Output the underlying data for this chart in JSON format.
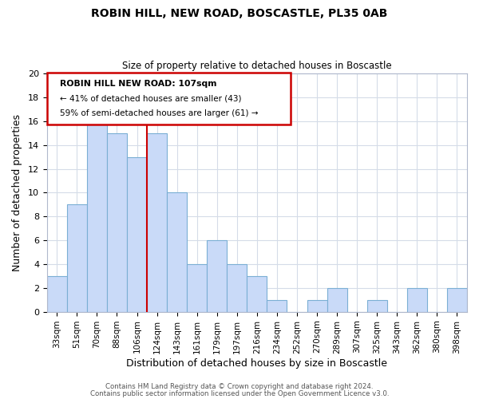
{
  "title": "ROBIN HILL, NEW ROAD, BOSCASTLE, PL35 0AB",
  "subtitle": "Size of property relative to detached houses in Boscastle",
  "xlabel": "Distribution of detached houses by size in Boscastle",
  "ylabel": "Number of detached properties",
  "bar_labels": [
    "33sqm",
    "51sqm",
    "70sqm",
    "88sqm",
    "106sqm",
    "124sqm",
    "143sqm",
    "161sqm",
    "179sqm",
    "197sqm",
    "216sqm",
    "234sqm",
    "252sqm",
    "270sqm",
    "289sqm",
    "307sqm",
    "325sqm",
    "343sqm",
    "362sqm",
    "380sqm",
    "398sqm"
  ],
  "bar_values": [
    3,
    9,
    16,
    15,
    13,
    15,
    10,
    4,
    6,
    4,
    3,
    1,
    0,
    1,
    2,
    0,
    1,
    0,
    2,
    0,
    2
  ],
  "bar_color": "#c9daf8",
  "bar_edge_color": "#7bafd4",
  "annotation_title": "ROBIN HILL NEW ROAD: 107sqm",
  "annotation_line1": "← 41% of detached houses are smaller (43)",
  "annotation_line2": "59% of semi-detached houses are larger (61) →",
  "annotation_box_color": "#ffffff",
  "annotation_box_edge": "#cc0000",
  "vline_after_bar": 4,
  "ylim": [
    0,
    20
  ],
  "yticks": [
    0,
    2,
    4,
    6,
    8,
    10,
    12,
    14,
    16,
    18,
    20
  ],
  "footer1": "Contains HM Land Registry data © Crown copyright and database right 2024.",
  "footer2": "Contains public sector information licensed under the Open Government Licence v3.0.",
  "bg_color": "#ffffff",
  "grid_color": "#d5dce8"
}
